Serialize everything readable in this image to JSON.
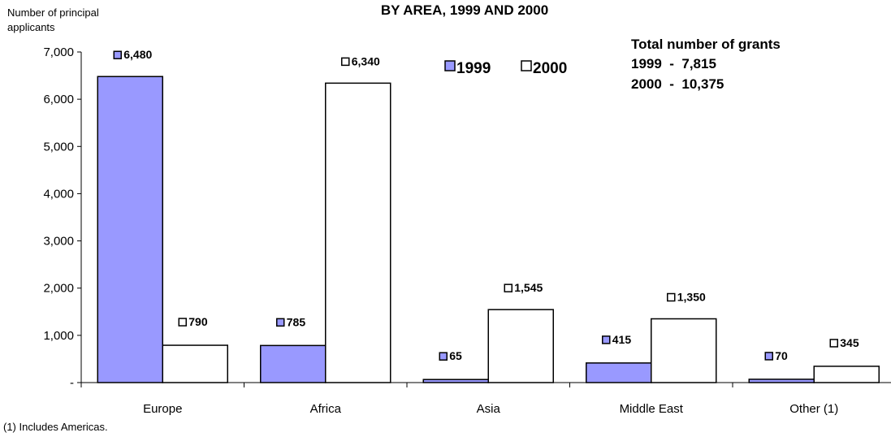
{
  "chart_data": {
    "type": "bar",
    "title": "BY AREA, 1999 AND 2000",
    "ylabel": "Number of principal applicants",
    "xlabel": "",
    "categories": [
      "Europe",
      "Africa",
      "Asia",
      "Middle East",
      "Other (1)"
    ],
    "series": [
      {
        "name": "1999",
        "values": [
          6480,
          785,
          65,
          415,
          70
        ],
        "labels": [
          "6,480",
          "785",
          "65",
          "415",
          "70"
        ],
        "color": "#9999ff"
      },
      {
        "name": "2000",
        "values": [
          790,
          6340,
          1545,
          1350,
          345
        ],
        "labels": [
          "790",
          "6,340",
          "1,545",
          "1,350",
          "345"
        ],
        "color": "#ffffff"
      }
    ],
    "ylim": [
      0,
      7000
    ],
    "yticks": [
      0,
      1000,
      2000,
      3000,
      4000,
      5000,
      6000,
      7000
    ],
    "ytick_labels": [
      "-",
      "1,000",
      "2,000",
      "3,000",
      "4,000",
      "5,000",
      "6,000",
      "7,000"
    ],
    "grid": false,
    "legend_position": "top-center",
    "annotation": {
      "heading": "Total number of grants",
      "lines": [
        "1999  -  7,815",
        "2000  -  10,375"
      ]
    },
    "footnote": "(1) Includes Americas."
  }
}
